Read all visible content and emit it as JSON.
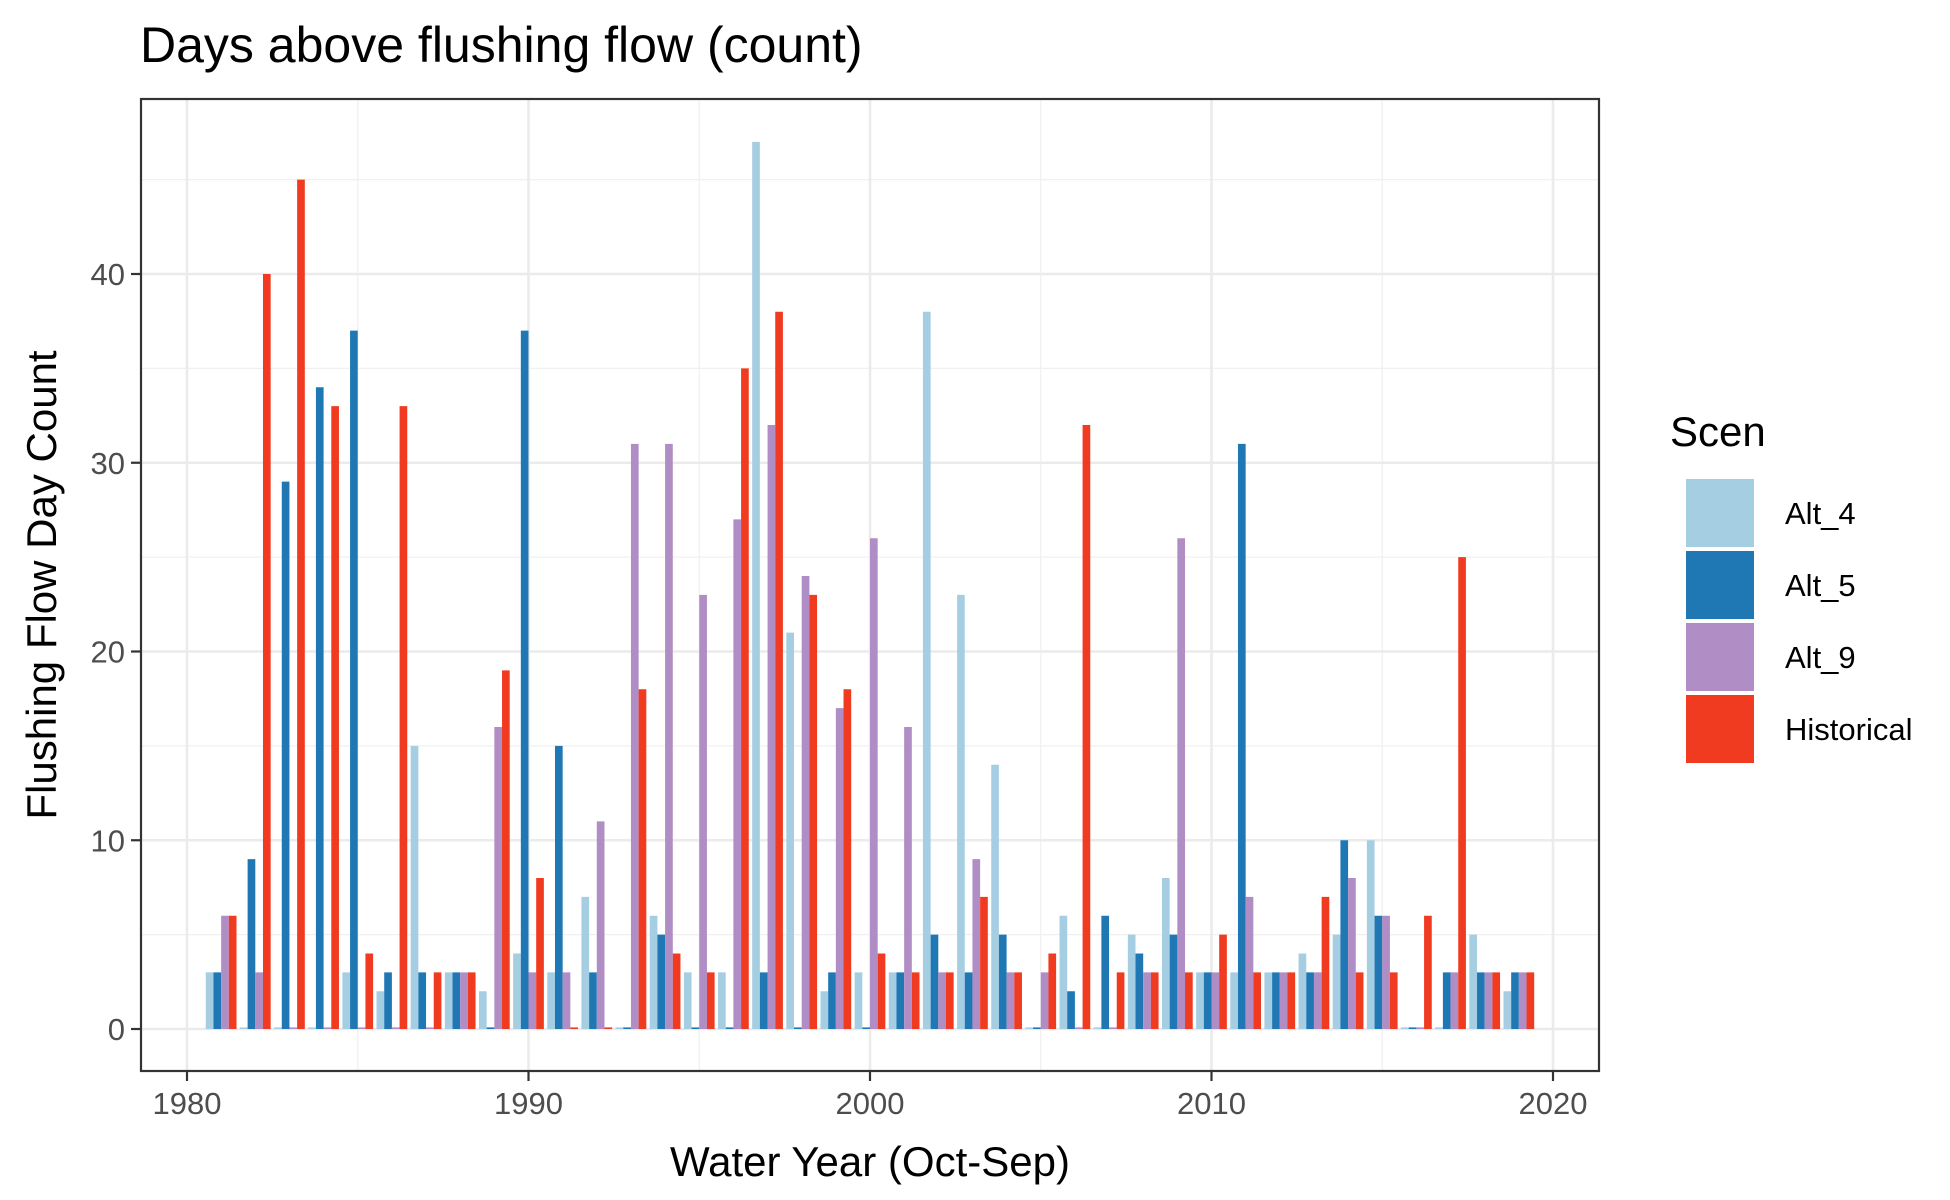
{
  "chart_data": {
    "type": "bar",
    "title": "Days above flushing flow (count)",
    "xlabel": "Water Year (Oct-Sep)",
    "ylabel": "Flushing Flow Day Count",
    "xlim": [
      1980,
      2020
    ],
    "ylim": [
      0,
      47
    ],
    "x_ticks": [
      1980,
      1990,
      2000,
      2010,
      2020
    ],
    "y_ticks": [
      0,
      10,
      20,
      30,
      40
    ],
    "grid": true,
    "legend": {
      "title": "Scen",
      "placement": "right"
    },
    "x": [
      1981,
      1982,
      1983,
      1984,
      1985,
      1986,
      1987,
      1988,
      1989,
      1990,
      1991,
      1992,
      1993,
      1994,
      1995,
      1996,
      1997,
      1998,
      1999,
      2000,
      2001,
      2002,
      2003,
      2004,
      2005,
      2006,
      2007,
      2008,
      2009,
      2010,
      2011,
      2012,
      2013,
      2014,
      2015,
      2016,
      2017,
      2018,
      2019
    ],
    "series": [
      {
        "name": "Alt_4",
        "color": "#a6cee3",
        "values": [
          3,
          0,
          0,
          0,
          3,
          2,
          15,
          3,
          2,
          4,
          3,
          7,
          0,
          6,
          3,
          3,
          47,
          21,
          2,
          3,
          3,
          38,
          23,
          14,
          0,
          6,
          0,
          5,
          8,
          3,
          3,
          3,
          4,
          5,
          10,
          0,
          0,
          5,
          2
        ]
      },
      {
        "name": "Alt_5",
        "color": "#1f78b4",
        "values": [
          3,
          9,
          29,
          34,
          37,
          3,
          3,
          3,
          0,
          37,
          15,
          3,
          0,
          5,
          0,
          0,
          3,
          0,
          3,
          0,
          3,
          5,
          3,
          5,
          0,
          2,
          6,
          4,
          5,
          3,
          31,
          3,
          3,
          10,
          6,
          0,
          3,
          3,
          3
        ]
      },
      {
        "name": "Alt_9",
        "color": "#b08dc4",
        "values": [
          6,
          3,
          0,
          0,
          0,
          0,
          0,
          3,
          16,
          3,
          3,
          11,
          31,
          31,
          23,
          27,
          32,
          24,
          17,
          26,
          16,
          3,
          9,
          3,
          3,
          0,
          0,
          3,
          26,
          3,
          7,
          3,
          3,
          8,
          6,
          0,
          3,
          3,
          3
        ]
      },
      {
        "name": "Historical",
        "color": "#f03b20",
        "values": [
          6,
          40,
          45,
          33,
          4,
          33,
          3,
          3,
          19,
          8,
          0,
          0,
          18,
          4,
          3,
          35,
          38,
          23,
          18,
          4,
          3,
          3,
          7,
          3,
          4,
          32,
          3,
          3,
          3,
          5,
          3,
          3,
          7,
          3,
          3,
          6,
          25,
          3,
          3
        ]
      }
    ]
  }
}
